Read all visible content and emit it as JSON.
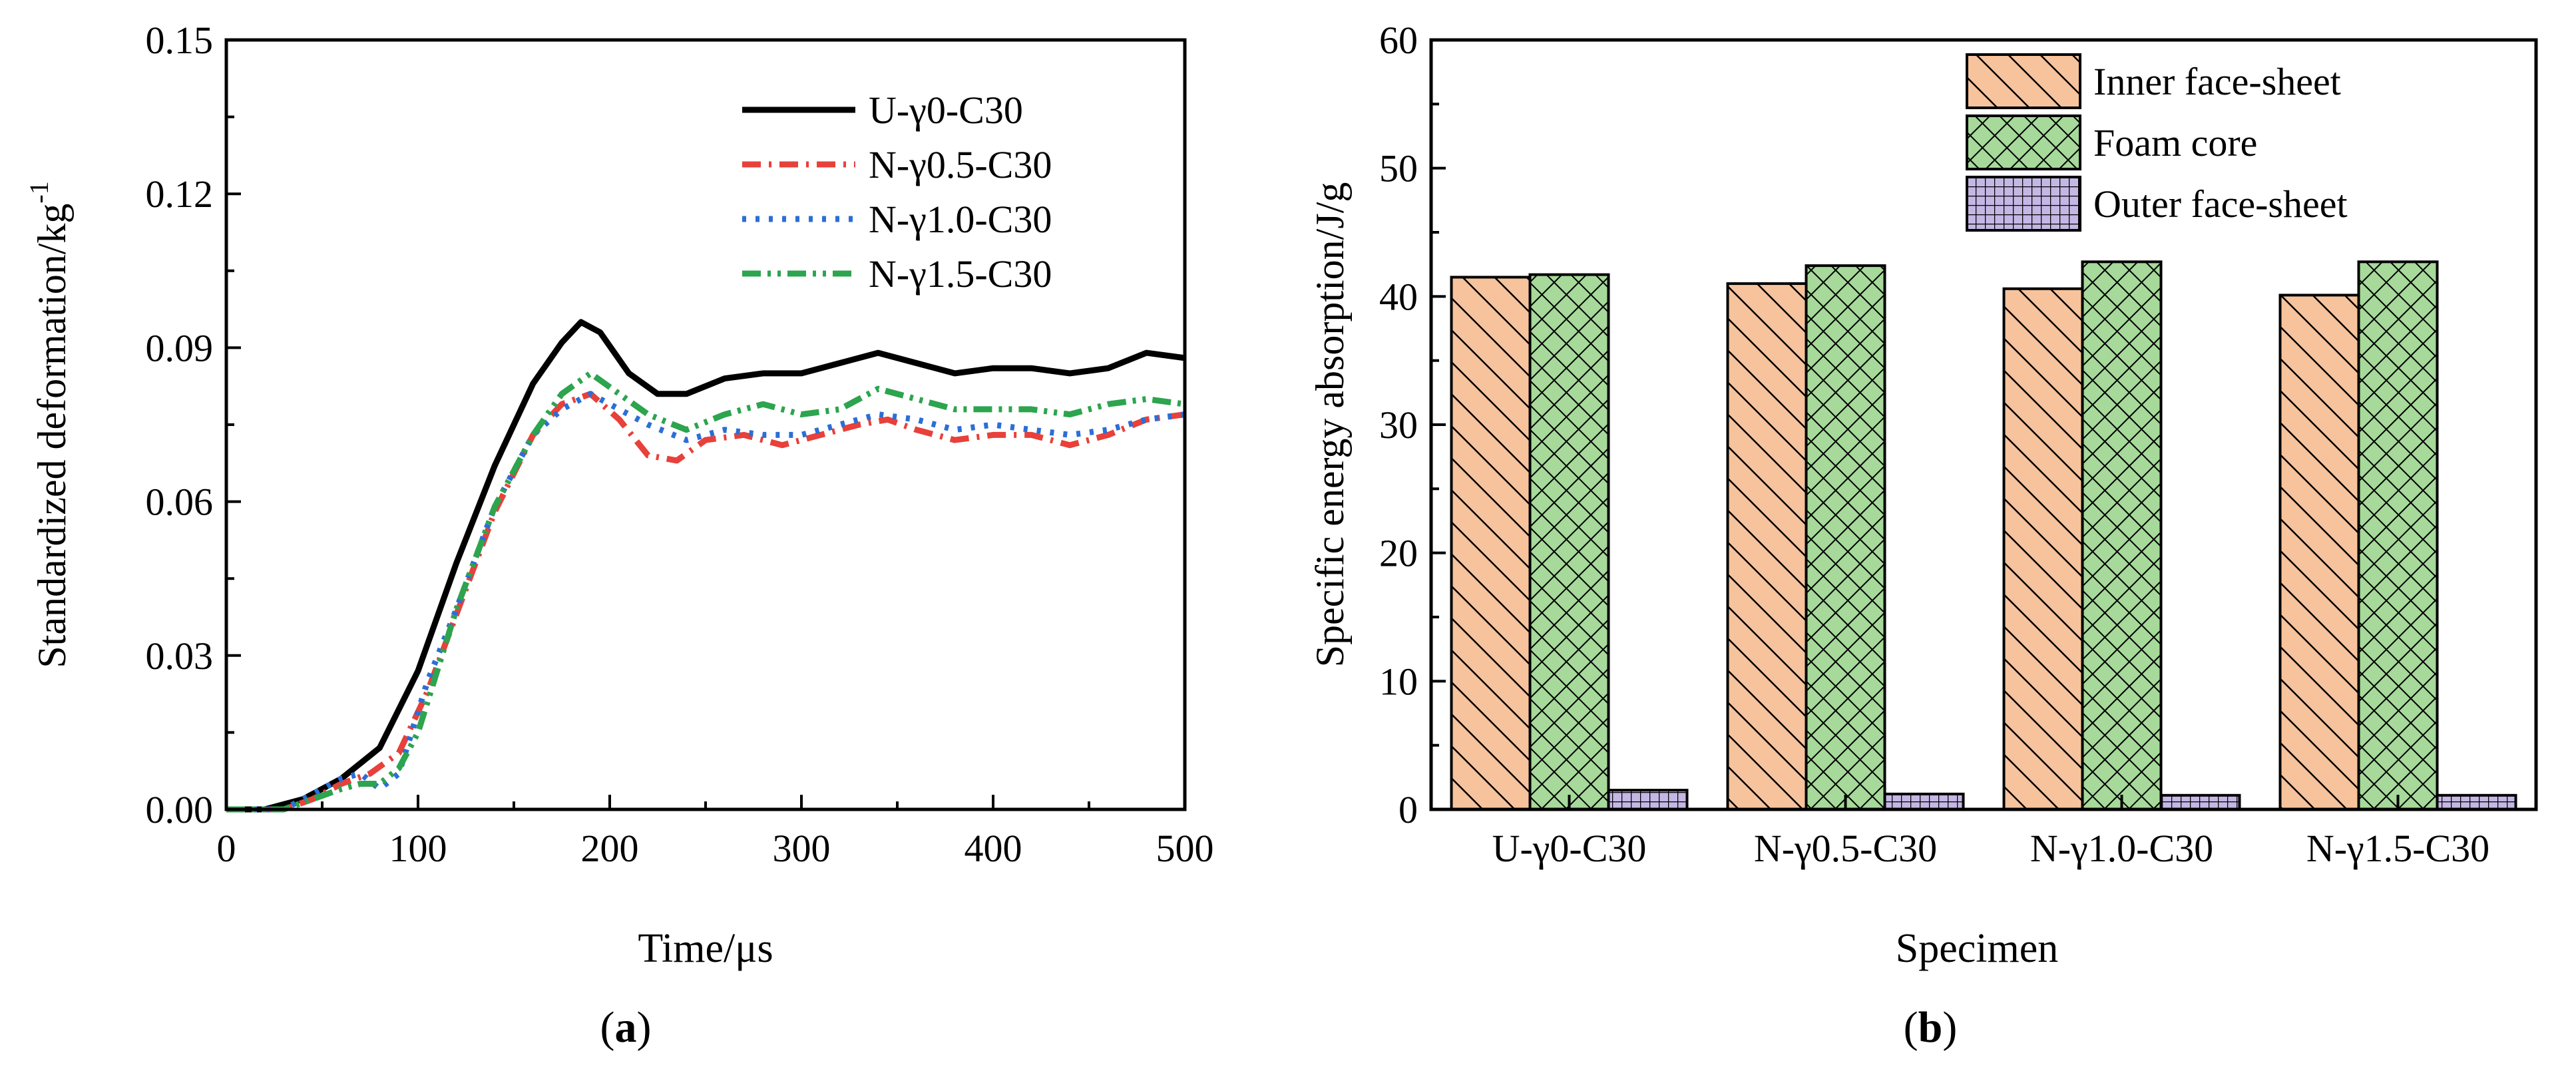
{
  "chart_data": [
    {
      "type": "line",
      "panel_label": "a",
      "xlabel": "Time/μs",
      "ylabel": "Standardized deformation/kg",
      "ylabel_superscript": "-1",
      "xlim": [
        0,
        500
      ],
      "ylim": [
        0,
        0.15
      ],
      "xticks": [
        0,
        100,
        200,
        300,
        400,
        500
      ],
      "xtick_labels": [
        "0",
        "100",
        "200",
        "300",
        "400",
        "500"
      ],
      "yticks": [
        0,
        0.03,
        0.06,
        0.09,
        0.12,
        0.15
      ],
      "ytick_labels": [
        "0.00",
        "0.03",
        "0.06",
        "0.09",
        "0.12",
        "0.15"
      ],
      "legend_position": "top-right",
      "series": [
        {
          "name": "U-γ0-C30",
          "color": "#000000",
          "dash": "solid",
          "x": [
            0,
            20,
            40,
            60,
            80,
            100,
            120,
            140,
            160,
            175,
            185,
            195,
            210,
            225,
            240,
            260,
            280,
            300,
            320,
            340,
            360,
            380,
            400,
            420,
            440,
            460,
            480,
            500
          ],
          "y": [
            0,
            0,
            0.002,
            0.006,
            0.012,
            0.027,
            0.048,
            0.067,
            0.083,
            0.091,
            0.095,
            0.093,
            0.085,
            0.081,
            0.081,
            0.084,
            0.085,
            0.085,
            0.087,
            0.089,
            0.087,
            0.085,
            0.086,
            0.086,
            0.085,
            0.086,
            0.089,
            0.088
          ]
        },
        {
          "name": "N-γ0.5-C30",
          "color": "#e8403a",
          "dash": "dashdot",
          "x": [
            0,
            30,
            45,
            60,
            75,
            90,
            105,
            120,
            140,
            160,
            175,
            190,
            205,
            220,
            235,
            250,
            270,
            290,
            310,
            330,
            345,
            360,
            380,
            400,
            420,
            440,
            460,
            480,
            500
          ],
          "y": [
            0,
            0,
            0.002,
            0.005,
            0.007,
            0.011,
            0.023,
            0.038,
            0.058,
            0.073,
            0.079,
            0.081,
            0.076,
            0.069,
            0.068,
            0.072,
            0.073,
            0.071,
            0.073,
            0.075,
            0.076,
            0.074,
            0.072,
            0.073,
            0.073,
            0.071,
            0.073,
            0.076,
            0.077
          ]
        },
        {
          "name": "N-γ1.0-C30",
          "color": "#2b6fd6",
          "dash": "dotted",
          "x": [
            0,
            30,
            45,
            60,
            70,
            80,
            90,
            105,
            120,
            140,
            160,
            175,
            190,
            205,
            220,
            240,
            260,
            280,
            300,
            320,
            340,
            360,
            380,
            400,
            420,
            440,
            460,
            480,
            500
          ],
          "y": [
            0,
            0,
            0.003,
            0.006,
            0.007,
            0.004,
            0.007,
            0.025,
            0.039,
            0.059,
            0.073,
            0.078,
            0.081,
            0.078,
            0.075,
            0.072,
            0.074,
            0.073,
            0.073,
            0.075,
            0.077,
            0.076,
            0.074,
            0.075,
            0.074,
            0.073,
            0.074,
            0.076,
            0.077
          ]
        },
        {
          "name": "N-γ1.5-C30",
          "color": "#2da44e",
          "dash": "dashdotdot",
          "x": [
            0,
            30,
            45,
            60,
            70,
            80,
            90,
            100,
            120,
            140,
            160,
            175,
            190,
            205,
            220,
            240,
            260,
            280,
            300,
            320,
            340,
            360,
            380,
            400,
            420,
            440,
            460,
            480,
            500
          ],
          "y": [
            0,
            0,
            0.002,
            0.004,
            0.005,
            0.005,
            0.008,
            0.015,
            0.039,
            0.059,
            0.073,
            0.081,
            0.085,
            0.081,
            0.077,
            0.074,
            0.077,
            0.079,
            0.077,
            0.078,
            0.082,
            0.08,
            0.078,
            0.078,
            0.078,
            0.077,
            0.079,
            0.08,
            0.079
          ]
        }
      ]
    },
    {
      "type": "bar",
      "panel_label": "b",
      "xlabel": "Specimen",
      "ylabel": "Specific energy absorption/J/g",
      "ylim": [
        0,
        60
      ],
      "yticks": [
        0,
        10,
        20,
        30,
        40,
        50,
        60
      ],
      "ytick_labels": [
        "0",
        "10",
        "20",
        "30",
        "40",
        "50",
        "60"
      ],
      "legend_position": "top-right",
      "categories": [
        "U-γ0-C30",
        "N-γ0.5-C30",
        "N-γ1.0-C30",
        "N-γ1.5-C30"
      ],
      "series": [
        {
          "name": "Inner face-sheet",
          "color": "#f6c39c",
          "pattern": "diagonal-hatch",
          "values": [
            41.5,
            41.0,
            40.6,
            40.1
          ]
        },
        {
          "name": "Foam core",
          "color": "#a6d99a",
          "pattern": "crosshatch",
          "values": [
            41.7,
            42.4,
            42.7,
            42.7
          ]
        },
        {
          "name": "Outer face-sheet",
          "color": "#c4b7e4",
          "pattern": "grid",
          "values": [
            1.5,
            1.2,
            1.1,
            1.1
          ]
        }
      ]
    }
  ]
}
